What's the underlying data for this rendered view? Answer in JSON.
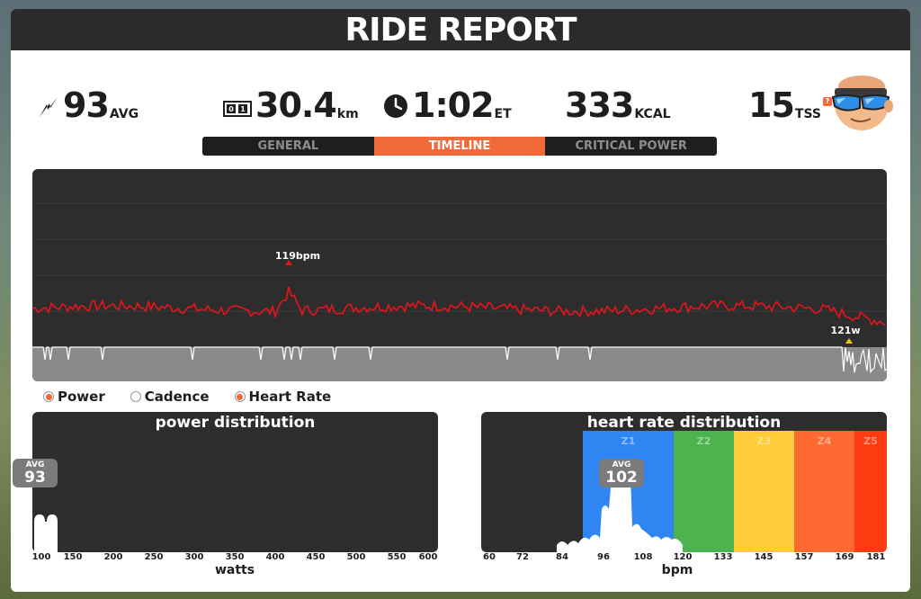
{
  "header": {
    "title": "RIDE REPORT"
  },
  "stats": {
    "power": {
      "value": "93",
      "unit": "AVG",
      "icon": "power-bolt-icon"
    },
    "distance": {
      "value": "30.4",
      "unit": "km",
      "icon": "odometer-icon"
    },
    "time": {
      "value": "1:02",
      "unit": "ET",
      "icon": "clock-icon"
    },
    "calories": {
      "value": "333",
      "unit": "KCAL"
    },
    "tss": {
      "value": "15",
      "unit": "TSS",
      "help": "?"
    }
  },
  "tabs": [
    {
      "label": "GENERAL",
      "active": false
    },
    {
      "label": "TIMELINE",
      "active": true
    },
    {
      "label": "CRITICAL POWER",
      "active": false
    }
  ],
  "timeline": {
    "hr_peak_label": "119bpm",
    "power_peak_label": "121w",
    "hr_color": "#e8141b",
    "power_color": "#ffffff",
    "peak_marker_color": "#f5c518"
  },
  "legend": [
    {
      "label": "Power",
      "selected": true
    },
    {
      "label": "Cadence",
      "selected": false
    },
    {
      "label": "Heart Rate",
      "selected": true
    }
  ],
  "power_distribution": {
    "title": "power distribution",
    "avg_label": "AVG",
    "avg_value": "93",
    "axis_label": "watts",
    "ticks": [
      "100",
      "150",
      "200",
      "250",
      "300",
      "350",
      "400",
      "450",
      "500",
      "550",
      "600"
    ]
  },
  "hr_distribution": {
    "title": "heart rate distribution",
    "avg_label": "AVG",
    "avg_value": "102",
    "axis_label": "bpm",
    "ticks": [
      "60",
      "72",
      "84",
      "96",
      "108",
      "120",
      "133",
      "145",
      "157",
      "169",
      "181"
    ],
    "zones": [
      {
        "label": "Z1",
        "color": "#2f86f2"
      },
      {
        "label": "Z2",
        "color": "#4db34f"
      },
      {
        "label": "Z3",
        "color": "#ffcb3b"
      },
      {
        "label": "Z4",
        "color": "#ff6a33"
      },
      {
        "label": "Z5",
        "color": "#ff3b12"
      }
    ]
  }
}
